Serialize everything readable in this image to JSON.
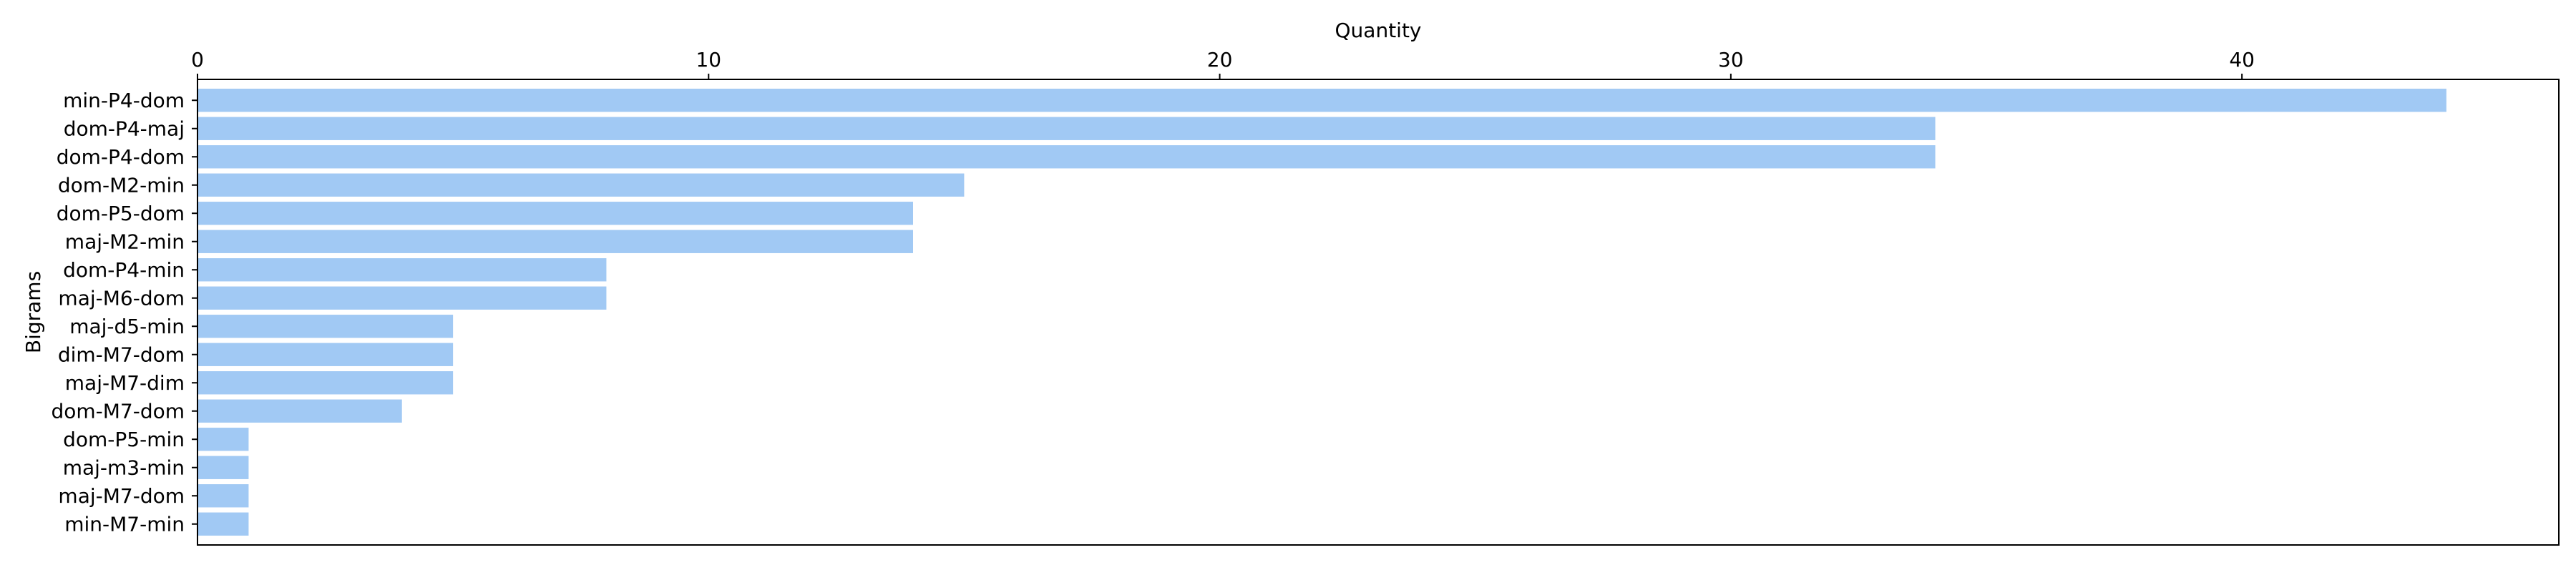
{
  "chart_data": {
    "type": "bar",
    "orientation": "horizontal",
    "title": "",
    "xlabel": "Quantity",
    "ylabel": "Bigrams",
    "x_axis_position": "top",
    "xlim": [
      0,
      46.2
    ],
    "xticks": [
      0,
      10,
      20,
      30,
      40
    ],
    "grid": false,
    "bar_color": "#a1c9f4",
    "categories": [
      "min-P4-dom",
      "dom-P4-maj",
      "dom-P4-dom",
      "dom-M2-min",
      "dom-P5-dom",
      "maj-M2-min",
      "dom-P4-min",
      "maj-M6-dom",
      "maj-d5-min",
      "dim-M7-dom",
      "maj-M7-dim",
      "dom-M7-dom",
      "dom-P5-min",
      "maj-m3-min",
      "maj-M7-dom",
      "min-M7-min"
    ],
    "values": [
      44,
      34,
      34,
      15,
      14,
      14,
      8,
      8,
      5,
      5,
      5,
      4,
      1,
      1,
      1,
      1
    ]
  }
}
